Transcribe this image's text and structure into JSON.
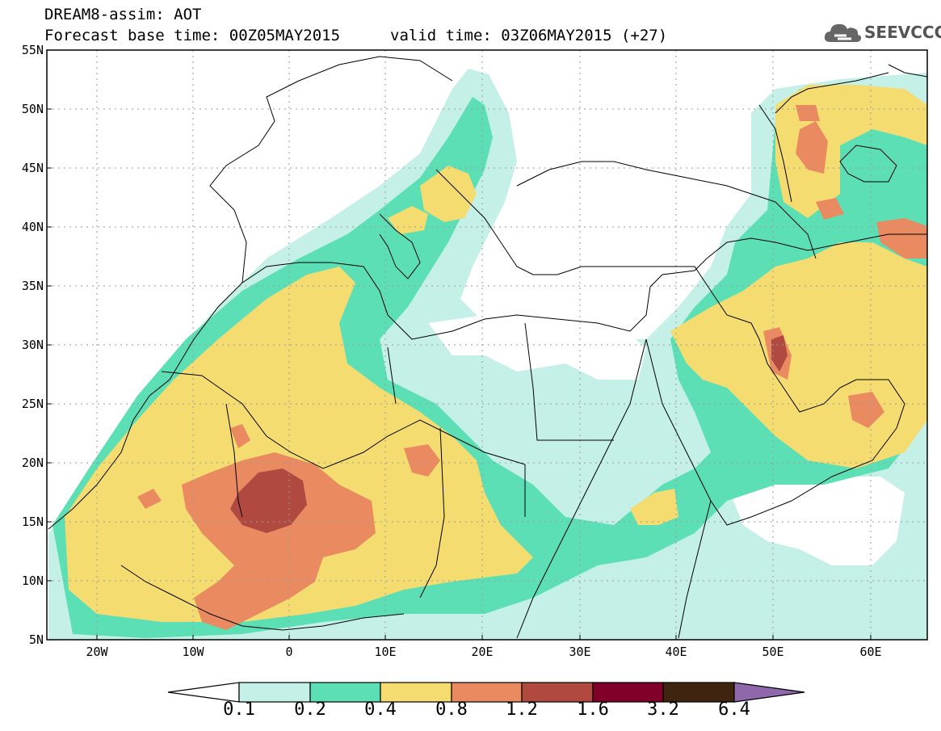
{
  "header": {
    "title": "DREAM8-assim: AOT",
    "base_time": "Forecast base time: 00Z05MAY2015",
    "valid_time": "valid time: 03Z06MAY2015 (+27)"
  },
  "logo": {
    "text": "SEEVCCC",
    "icon": "cloud-icon"
  },
  "map": {
    "variable": "AOT",
    "lon_range": [
      -25,
      65
    ],
    "lat_range": [
      5,
      55
    ],
    "grid": true,
    "lat_ticks": [
      "55N",
      "50N",
      "45N",
      "40N",
      "35N",
      "30N",
      "25N",
      "20N",
      "15N",
      "10N",
      "5N"
    ],
    "lon_ticks": [
      "20W",
      "10W",
      "0",
      "10E",
      "20E",
      "30E",
      "40E",
      "50E",
      "60E"
    ],
    "region": "North Africa, Mediterranean, Middle East"
  },
  "colorbar": {
    "labels": [
      "0.1",
      "0.2",
      "0.4",
      "0.8",
      "1.2",
      "1.6",
      "3.2",
      "6.4"
    ],
    "colors": [
      "#c4f0e8",
      "#5ddfb6",
      "#f5dc70",
      "#e98a60",
      "#b04a40",
      "#80002a",
      "#3f2510",
      "#8f67ab"
    ]
  }
}
